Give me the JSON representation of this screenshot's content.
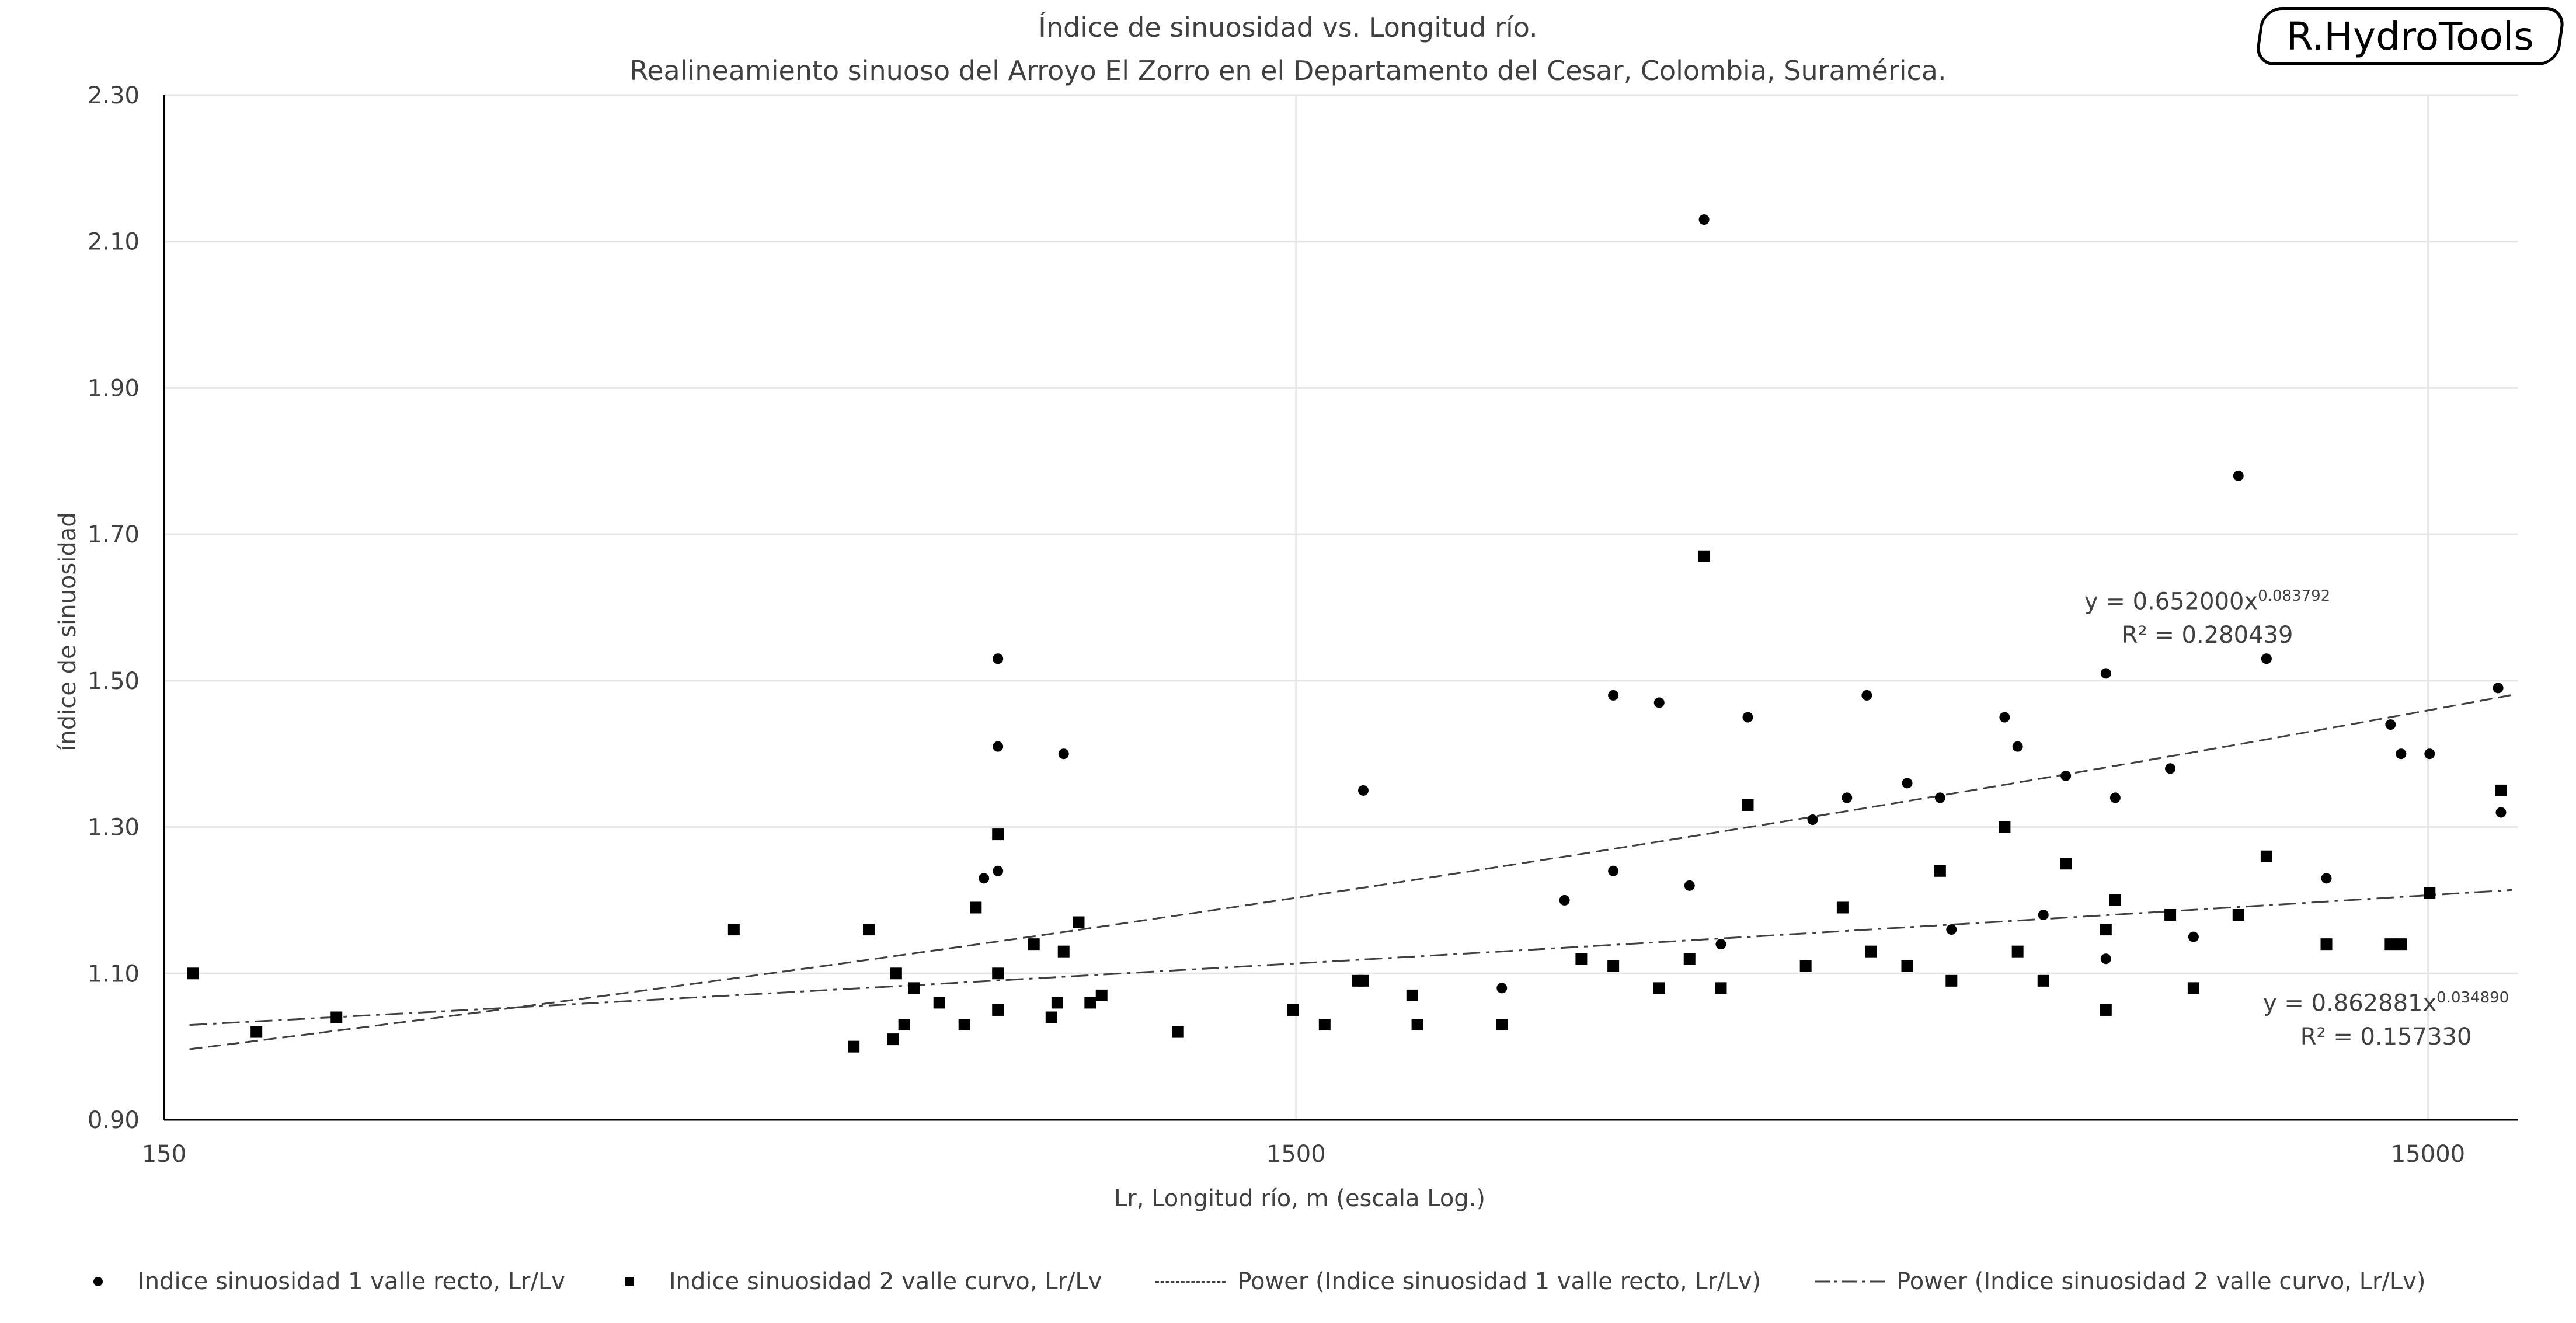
{
  "title": "Índice de sinuosidad vs. Longitud río.",
  "subtitle": "Realineamiento sinuoso del Arroyo El Zorro en el Departamento del Cesar, Colombia, Suramérica.",
  "brand": "R.HydroTools",
  "colors": {
    "text": "#404040",
    "points": "#000000",
    "grid": "#e6e6e6",
    "axis": "#000000"
  },
  "chart_data": {
    "type": "scatter",
    "title": "Índice de sinuosidad vs. Longitud río.",
    "subtitle": "Realineamiento sinuoso del Arroyo El Zorro en el Departamento del Cesar, Colombia, Suramérica.",
    "xlabel": "Lr, Longitud río, m (escala Log.)",
    "ylabel": "índice de sinuosidad",
    "x_scale": "log",
    "xlim": [
      150,
      18000
    ],
    "ylim": [
      0.9,
      2.3
    ],
    "x_ticks": [
      "150",
      "1500",
      "15000"
    ],
    "y_ticks": [
      "0.90",
      "1.10",
      "1.30",
      "1.50",
      "1.70",
      "1.90",
      "2.10",
      "2.30"
    ],
    "grid": true,
    "legend_position": "bottom",
    "series": [
      {
        "name": "Indice sinuosidad 1 valle recto, Lr/Lv",
        "marker": "circle",
        "points": [
          [
            795,
            1.23
          ],
          [
            818,
            1.24
          ],
          [
            818,
            1.41
          ],
          [
            818,
            1.53
          ],
          [
            935,
            1.4
          ],
          [
            1720,
            1.35
          ],
          [
            2280,
            1.08
          ],
          [
            2590,
            1.2
          ],
          [
            2860,
            1.24
          ],
          [
            2860,
            1.48
          ],
          [
            3140,
            1.47
          ],
          [
            3340,
            1.22
          ],
          [
            3440,
            2.13
          ],
          [
            3560,
            1.14
          ],
          [
            3760,
            1.45
          ],
          [
            4290,
            1.31
          ],
          [
            4600,
            1.34
          ],
          [
            4790,
            1.48
          ],
          [
            5200,
            1.36
          ],
          [
            5560,
            1.34
          ],
          [
            5690,
            1.16
          ],
          [
            6340,
            1.45
          ],
          [
            6510,
            1.41
          ],
          [
            6860,
            1.18
          ],
          [
            7180,
            1.37
          ],
          [
            7790,
            1.51
          ],
          [
            7790,
            1.12
          ],
          [
            7940,
            1.34
          ],
          [
            8880,
            1.38
          ],
          [
            9310,
            1.15
          ],
          [
            10200,
            1.78
          ],
          [
            10800,
            1.53
          ],
          [
            12200,
            1.23
          ],
          [
            13900,
            1.44
          ],
          [
            14200,
            1.4
          ],
          [
            17400,
            1.32
          ],
          [
            15050,
            1.4
          ],
          [
            17300,
            1.49
          ]
        ]
      },
      {
        "name": "Indice sinuosidad 2 valle curvo, Lr/Lv",
        "marker": "square",
        "points": [
          [
            159,
            1.1
          ],
          [
            181,
            1.02
          ],
          [
            213,
            1.04
          ],
          [
            478,
            1.16
          ],
          [
            610,
            1.0
          ],
          [
            629,
            1.16
          ],
          [
            661,
            1.01
          ],
          [
            665,
            1.1
          ],
          [
            676,
            1.03
          ],
          [
            690,
            1.08
          ],
          [
            726,
            1.06
          ],
          [
            764,
            1.03
          ],
          [
            782,
            1.19
          ],
          [
            818,
            1.05
          ],
          [
            818,
            1.1
          ],
          [
            818,
            1.29
          ],
          [
            880,
            1.14
          ],
          [
            912,
            1.04
          ],
          [
            923,
            1.06
          ],
          [
            935,
            1.13
          ],
          [
            964,
            1.17
          ],
          [
            987,
            1.06
          ],
          [
            1010,
            1.07
          ],
          [
            1180,
            1.02
          ],
          [
            1490,
            1.05
          ],
          [
            1590,
            1.03
          ],
          [
            1700,
            1.09
          ],
          [
            1720,
            1.09
          ],
          [
            1900,
            1.07
          ],
          [
            1920,
            1.03
          ],
          [
            2280,
            1.03
          ],
          [
            2680,
            1.12
          ],
          [
            2860,
            1.11
          ],
          [
            3140,
            1.08
          ],
          [
            3340,
            1.12
          ],
          [
            3440,
            1.67
          ],
          [
            3560,
            1.08
          ],
          [
            3760,
            1.33
          ],
          [
            4230,
            1.11
          ],
          [
            4560,
            1.19
          ],
          [
            4830,
            1.13
          ],
          [
            5200,
            1.11
          ],
          [
            5560,
            1.24
          ],
          [
            5690,
            1.09
          ],
          [
            6340,
            1.3
          ],
          [
            6510,
            1.13
          ],
          [
            6860,
            1.09
          ],
          [
            7180,
            1.25
          ],
          [
            7790,
            1.05
          ],
          [
            7790,
            1.16
          ],
          [
            7940,
            1.2
          ],
          [
            8880,
            1.18
          ],
          [
            9310,
            1.08
          ],
          [
            10200,
            1.18
          ],
          [
            10800,
            1.26
          ],
          [
            12200,
            1.14
          ],
          [
            13900,
            1.14
          ],
          [
            14200,
            1.14
          ],
          [
            15050,
            1.21
          ],
          [
            17400,
            1.35
          ]
        ]
      }
    ],
    "trendlines": [
      {
        "name": "Power (Indice sinuosidad 1 valle recto, Lr/Lv)",
        "type": "power",
        "a": 0.652,
        "b": 0.083792,
        "equation_label": "y = 0.652000x",
        "exponent_label": "0.083792",
        "r2_label": "R² = 0.280439",
        "style": "dashed"
      },
      {
        "name": "Power (Indice sinuosidad 2 valle curvo, Lr/Lv)",
        "type": "power",
        "a": 0.862881,
        "b": 0.03489,
        "equation_label": "y = 0.862881x",
        "exponent_label": "0.034890",
        "r2_label": "R² = 0.157330",
        "style": "dash-dot"
      }
    ]
  }
}
